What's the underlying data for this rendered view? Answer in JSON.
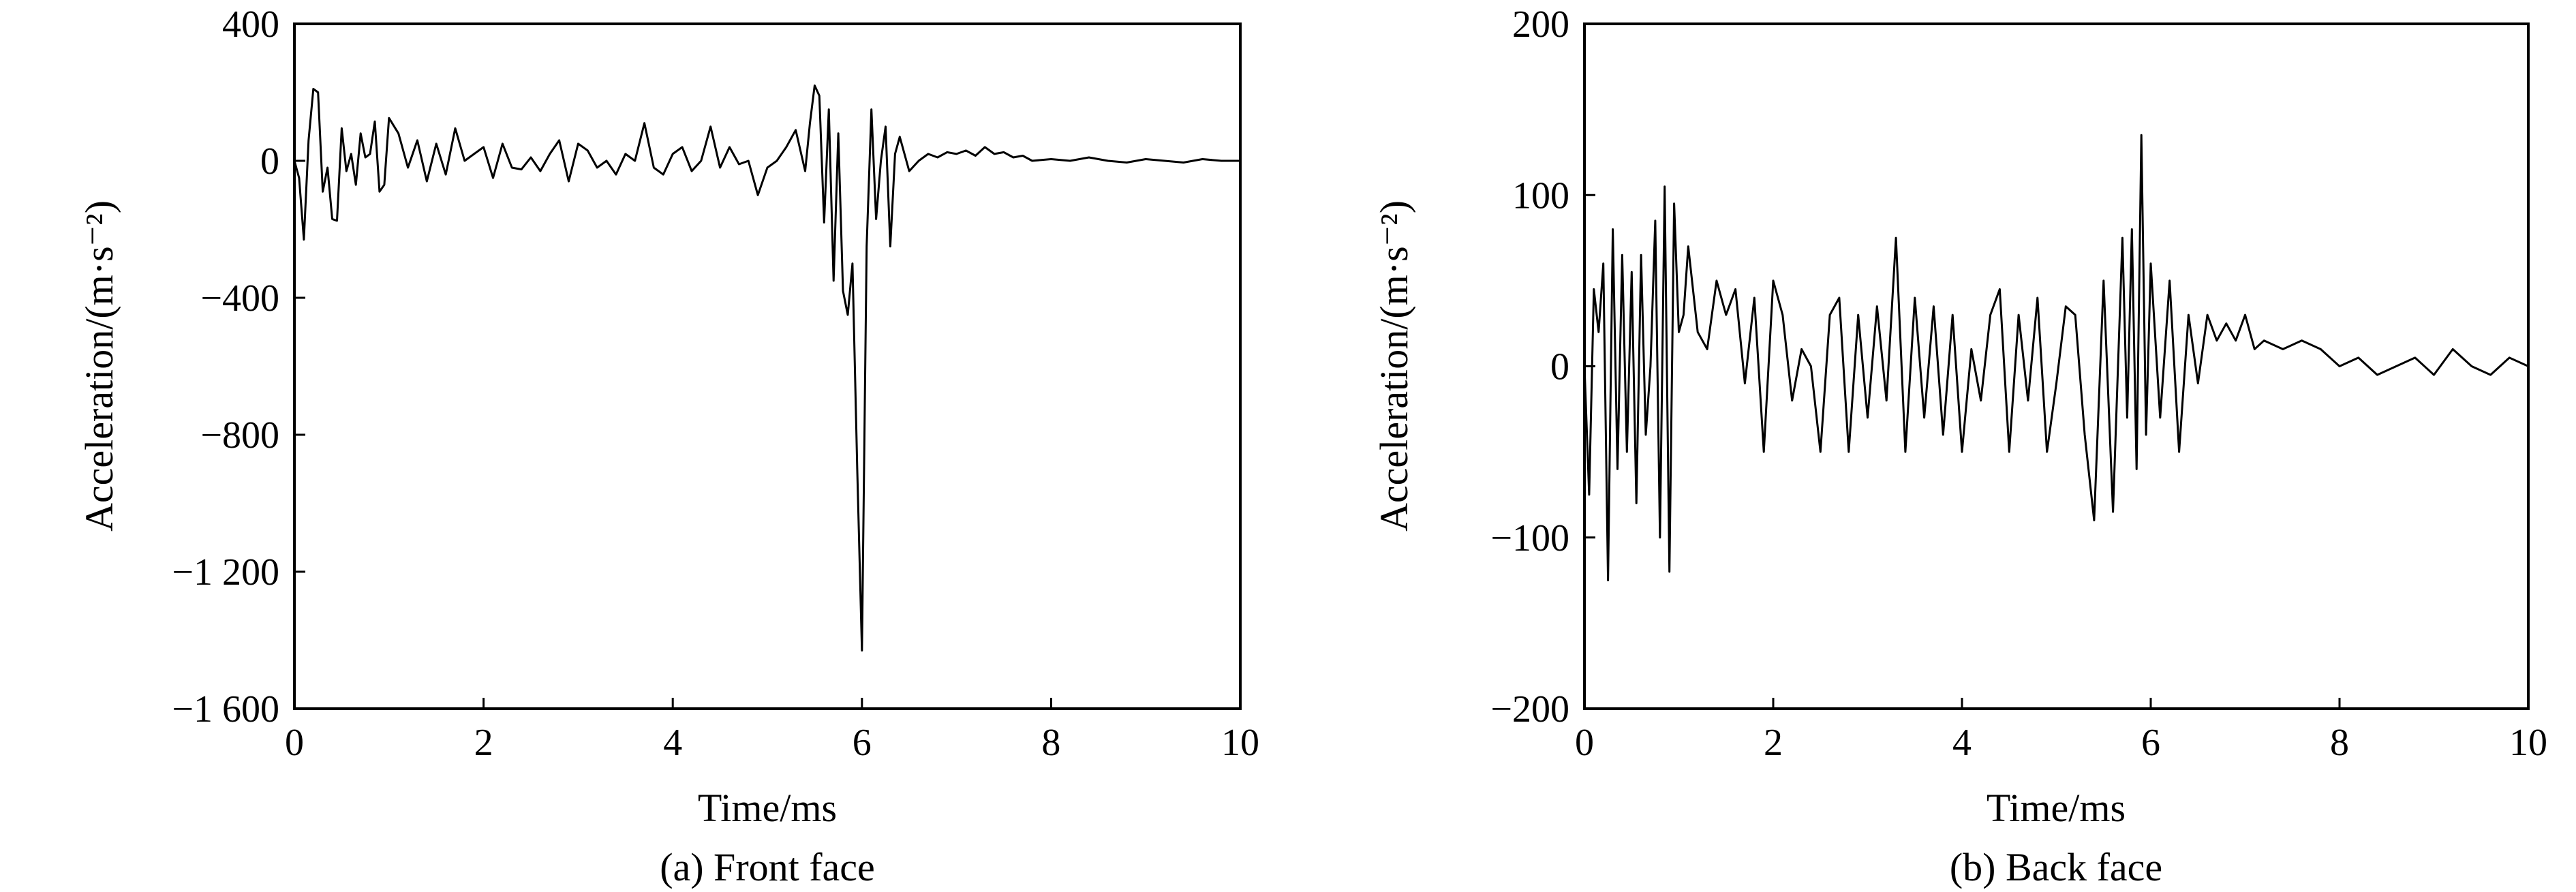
{
  "chart_data": [
    {
      "type": "line",
      "caption": "(a) Front face",
      "xlabel": "Time/ms",
      "ylabel": "Acceleration/(m·s⁻²)",
      "xlim": [
        0,
        10
      ],
      "ylim": [
        -1600,
        400
      ],
      "xticks": [
        0,
        2,
        4,
        6,
        8,
        10
      ],
      "yticks": [
        400,
        0,
        -400,
        -800,
        -1200,
        -1600
      ],
      "xtick_labels": [
        "0",
        "2",
        "4",
        "6",
        "8",
        "10"
      ],
      "ytick_labels": [
        "400",
        "0",
        "−400",
        "−800",
        "−1 200",
        "−1 600"
      ],
      "grid": false,
      "line_color": "#000000",
      "series": [
        {
          "x": [
            0,
            0.05,
            0.1,
            0.15,
            0.2,
            0.25,
            0.3,
            0.35,
            0.4,
            0.45,
            0.5,
            0.55,
            0.6,
            0.65,
            0.7,
            0.75,
            0.8,
            0.85,
            0.9,
            0.95,
            1.0,
            1.1,
            1.2,
            1.3,
            1.4,
            1.5,
            1.6,
            1.7,
            1.8,
            1.9,
            2.0,
            2.1,
            2.2,
            2.3,
            2.4,
            2.5,
            2.6,
            2.7,
            2.8,
            2.9,
            3.0,
            3.1,
            3.2,
            3.3,
            3.4,
            3.5,
            3.6,
            3.7,
            3.8,
            3.9,
            4.0,
            4.1,
            4.2,
            4.3,
            4.4,
            4.5,
            4.6,
            4.7,
            4.8,
            4.9,
            5.0,
            5.1,
            5.2,
            5.3,
            5.4,
            5.45,
            5.5,
            5.55,
            5.6,
            5.65,
            5.7,
            5.75,
            5.8,
            5.85,
            5.9,
            5.95,
            6.0,
            6.05,
            6.1,
            6.15,
            6.2,
            6.25,
            6.3,
            6.35,
            6.4,
            6.5,
            6.6,
            6.7,
            6.8,
            6.9,
            7.0,
            7.1,
            7.2,
            7.3,
            7.4,
            7.5,
            7.6,
            7.7,
            7.8,
            8.0,
            8.2,
            8.4,
            8.6,
            8.8,
            9.0,
            9.2,
            9.4,
            9.6,
            9.8,
            10.0
          ],
          "values": [
            0,
            -50,
            -230,
            60,
            210,
            200,
            -90,
            -20,
            -170,
            -175,
            95,
            -30,
            20,
            -70,
            80,
            10,
            20,
            115,
            -90,
            -70,
            125,
            80,
            -20,
            60,
            -60,
            50,
            -40,
            95,
            0,
            20,
            40,
            -50,
            50,
            -20,
            -25,
            10,
            -30,
            20,
            60,
            -60,
            50,
            30,
            -20,
            0,
            -40,
            20,
            0,
            110,
            -20,
            -40,
            20,
            40,
            -30,
            0,
            100,
            -20,
            40,
            -10,
            0,
            -100,
            -20,
            0,
            40,
            90,
            -30,
            110,
            220,
            190,
            -180,
            150,
            -350,
            80,
            -380,
            -450,
            -300,
            -900,
            -1430,
            -250,
            150,
            -170,
            0,
            100,
            -250,
            20,
            70,
            -30,
            0,
            20,
            10,
            25,
            20,
            30,
            15,
            40,
            20,
            25,
            10,
            15,
            0,
            5,
            0,
            10,
            0,
            -5,
            5,
            0,
            -5,
            5,
            0,
            0
          ]
        }
      ]
    },
    {
      "type": "line",
      "caption": "(b) Back face",
      "xlabel": "Time/ms",
      "ylabel": "Acceleration/(m·s⁻²)",
      "xlim": [
        0,
        10
      ],
      "ylim": [
        -200,
        200
      ],
      "xticks": [
        0,
        2,
        4,
        6,
        8,
        10
      ],
      "yticks": [
        200,
        100,
        0,
        -100,
        -200
      ],
      "xtick_labels": [
        "0",
        "2",
        "4",
        "6",
        "8",
        "10"
      ],
      "ytick_labels": [
        "200",
        "100",
        "0",
        "−100",
        "−200"
      ],
      "grid": false,
      "line_color": "#000000",
      "series": [
        {
          "x": [
            0,
            0.05,
            0.1,
            0.15,
            0.2,
            0.25,
            0.3,
            0.35,
            0.4,
            0.45,
            0.5,
            0.55,
            0.6,
            0.65,
            0.7,
            0.75,
            0.8,
            0.85,
            0.9,
            0.95,
            1.0,
            1.05,
            1.1,
            1.2,
            1.3,
            1.4,
            1.5,
            1.6,
            1.7,
            1.8,
            1.9,
            2.0,
            2.1,
            2.2,
            2.3,
            2.4,
            2.5,
            2.6,
            2.7,
            2.8,
            2.9,
            3.0,
            3.1,
            3.2,
            3.3,
            3.4,
            3.5,
            3.6,
            3.7,
            3.8,
            3.9,
            4.0,
            4.1,
            4.2,
            4.3,
            4.4,
            4.5,
            4.6,
            4.7,
            4.8,
            4.9,
            5.0,
            5.1,
            5.2,
            5.3,
            5.4,
            5.5,
            5.6,
            5.7,
            5.75,
            5.8,
            5.85,
            5.9,
            5.95,
            6.0,
            6.1,
            6.2,
            6.3,
            6.4,
            6.5,
            6.6,
            6.7,
            6.8,
            6.9,
            7.0,
            7.1,
            7.2,
            7.4,
            7.6,
            7.8,
            8.0,
            8.2,
            8.4,
            8.6,
            8.8,
            9.0,
            9.2,
            9.4,
            9.6,
            9.8,
            10.0
          ],
          "values": [
            0,
            -75,
            45,
            20,
            60,
            -125,
            80,
            -60,
            65,
            -50,
            55,
            -80,
            65,
            -40,
            0,
            85,
            -100,
            105,
            -120,
            95,
            20,
            30,
            70,
            20,
            10,
            50,
            30,
            45,
            -10,
            40,
            -50,
            50,
            30,
            -20,
            10,
            0,
            -50,
            30,
            40,
            -50,
            30,
            -30,
            35,
            -20,
            75,
            -50,
            40,
            -30,
            35,
            -40,
            30,
            -50,
            10,
            -20,
            30,
            45,
            -50,
            30,
            -20,
            40,
            -50,
            -10,
            35,
            30,
            -40,
            -90,
            50,
            -85,
            75,
            -30,
            80,
            -60,
            135,
            -40,
            60,
            -30,
            50,
            -50,
            30,
            -10,
            30,
            15,
            25,
            15,
            30,
            10,
            15,
            10,
            15,
            10,
            0,
            5,
            -5,
            0,
            5,
            -5,
            10,
            0,
            -5,
            5,
            0
          ]
        }
      ]
    }
  ]
}
